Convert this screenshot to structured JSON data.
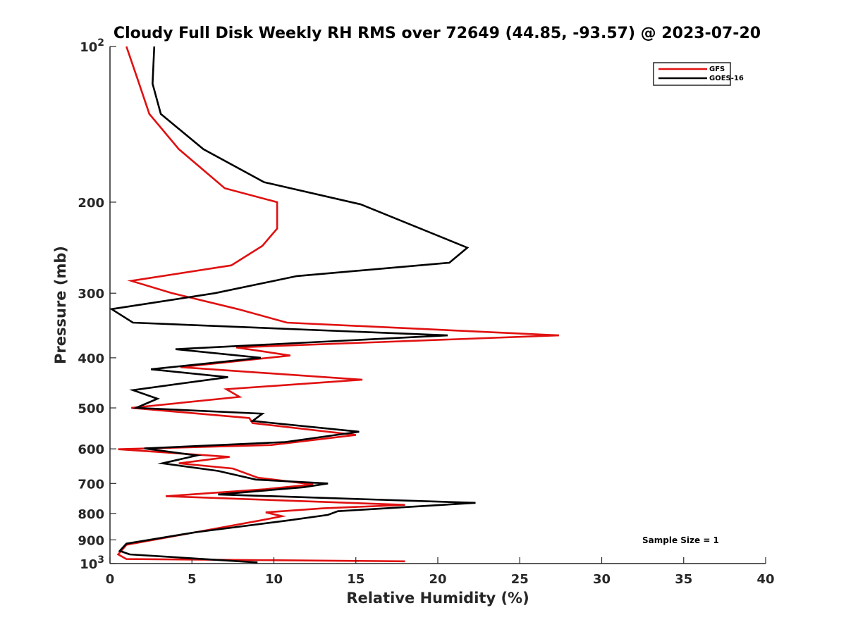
{
  "chart_data": {
    "type": "line",
    "title": "Cloudy Full Disk Weekly RH RMS over 72649 (44.85, -93.57) @ 2023-07-20",
    "xlabel": "Relative Humidity (%)",
    "ylabel": "Pressure (mb)",
    "xlim": [
      0,
      40
    ],
    "ylim": [
      100,
      1000
    ],
    "yscale": "log",
    "y_reversed": true,
    "x_ticks": [
      0,
      5,
      10,
      15,
      20,
      25,
      30,
      35,
      40
    ],
    "x_tick_labels": [
      "0",
      "5",
      "10",
      "15",
      "20",
      "25",
      "30",
      "35",
      "40"
    ],
    "y_ticks": [
      100,
      200,
      300,
      400,
      500,
      600,
      700,
      800,
      900,
      1000
    ],
    "y_tick_labels": [
      {
        "base": "10",
        "exp": "2"
      },
      {
        "base": "200"
      },
      {
        "base": "300"
      },
      {
        "base": "400"
      },
      {
        "base": "500"
      },
      {
        "base": "600"
      },
      {
        "base": "700"
      },
      {
        "base": "800"
      },
      {
        "base": "900"
      },
      {
        "base": "10",
        "exp": "3"
      }
    ],
    "grid": false,
    "legend_position": "top-right",
    "annotation": "Sample Size = 1",
    "series": [
      {
        "name": "GFS",
        "color": "#e01010",
        "points": [
          [
            1.0,
            100
          ],
          [
            1.7,
            116
          ],
          [
            2.4,
            135
          ],
          [
            4.2,
            158
          ],
          [
            7.0,
            188
          ],
          [
            10.2,
            200
          ],
          [
            10.2,
            225
          ],
          [
            9.3,
            243
          ],
          [
            7.4,
            265
          ],
          [
            1.3,
            284
          ],
          [
            3.8,
            300
          ],
          [
            7.8,
            322
          ],
          [
            10.8,
            342
          ],
          [
            27.4,
            362
          ],
          [
            7.7,
            382
          ],
          [
            11.0,
            396
          ],
          [
            4.3,
            417
          ],
          [
            15.4,
            441
          ],
          [
            7.1,
            460
          ],
          [
            7.9,
            476
          ],
          [
            1.3,
            500
          ],
          [
            8.5,
            523
          ],
          [
            8.7,
            535
          ],
          [
            15.0,
            564
          ],
          [
            9.8,
            590
          ],
          [
            0.5,
            601
          ],
          [
            7.3,
            622
          ],
          [
            4.2,
            640
          ],
          [
            7.5,
            655
          ],
          [
            9.0,
            682
          ],
          [
            12.4,
            703
          ],
          [
            9.5,
            718
          ],
          [
            3.4,
            741
          ],
          [
            18.0,
            770
          ],
          [
            13.0,
            782
          ],
          [
            9.5,
            796
          ],
          [
            10.5,
            810
          ],
          [
            9.2,
            825
          ],
          [
            6.5,
            855
          ],
          [
            1.0,
            920
          ],
          [
            0.5,
            960
          ],
          [
            1.0,
            980
          ],
          [
            18.0,
            990
          ]
        ]
      },
      {
        "name": "GOES-16",
        "color": "#000000",
        "points": [
          [
            2.7,
            100
          ],
          [
            2.6,
            118
          ],
          [
            3.1,
            135
          ],
          [
            5.7,
            158
          ],
          [
            9.4,
            183
          ],
          [
            15.3,
            202
          ],
          [
            21.8,
            245
          ],
          [
            20.7,
            262
          ],
          [
            11.4,
            278
          ],
          [
            6.4,
            300
          ],
          [
            0.1,
            322
          ],
          [
            1.4,
            342
          ],
          [
            20.6,
            362
          ],
          [
            4.0,
            385
          ],
          [
            9.2,
            400
          ],
          [
            2.5,
            421
          ],
          [
            7.2,
            436
          ],
          [
            1.4,
            462
          ],
          [
            2.9,
            480
          ],
          [
            1.6,
            500
          ],
          [
            9.3,
            513
          ],
          [
            8.7,
            530
          ],
          [
            15.2,
            556
          ],
          [
            10.7,
            582
          ],
          [
            2.1,
            599
          ],
          [
            5.3,
            618
          ],
          [
            3.2,
            640
          ],
          [
            6.6,
            662
          ],
          [
            8.9,
            688
          ],
          [
            13.3,
            700
          ],
          [
            11.8,
            712
          ],
          [
            6.6,
            735
          ],
          [
            22.3,
            763
          ],
          [
            13.9,
            792
          ],
          [
            13.3,
            805
          ],
          [
            10.9,
            825
          ],
          [
            5.2,
            870
          ],
          [
            1.0,
            915
          ],
          [
            0.6,
            945
          ],
          [
            1.2,
            960
          ],
          [
            9.0,
            995
          ]
        ]
      }
    ]
  }
}
